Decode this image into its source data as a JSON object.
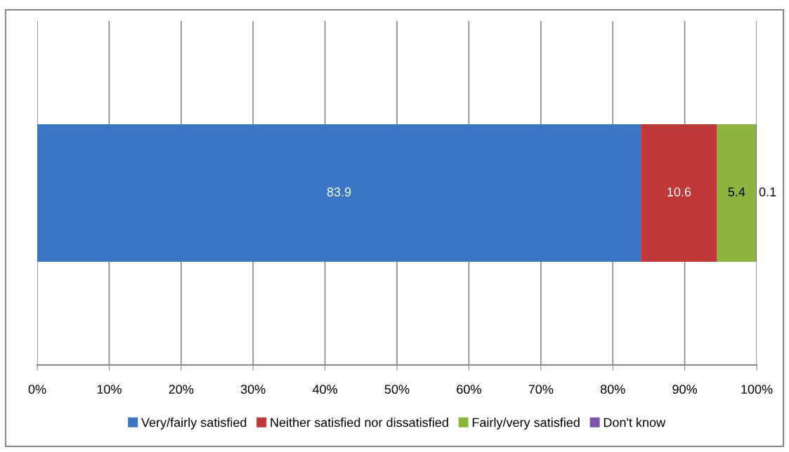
{
  "chart_data": {
    "type": "bar",
    "orientation": "horizontal",
    "stacked": true,
    "categories": [
      null
    ],
    "series": [
      {
        "name": "Very/fairly satisfied",
        "color": "#3a76c4",
        "values": [
          83.9
        ]
      },
      {
        "name": "Neither satisfied nor dissatisfied",
        "color": "#c0393a",
        "values": [
          10.6
        ]
      },
      {
        "name": "Fairly/very satisfied",
        "color": "#8db43e",
        "values": [
          5.4
        ]
      },
      {
        "name": "Don't know",
        "color": "#7b55a8",
        "values": [
          0.1
        ]
      }
    ],
    "data_labels": true,
    "xlim": [
      0,
      100
    ],
    "xticks": [
      {
        "value": 0,
        "label": "0%"
      },
      {
        "value": 10,
        "label": "10%"
      },
      {
        "value": 20,
        "label": "20%"
      },
      {
        "value": 30,
        "label": "30%"
      },
      {
        "value": 40,
        "label": "40%"
      },
      {
        "value": 50,
        "label": "50%"
      },
      {
        "value": 60,
        "label": "60%"
      },
      {
        "value": 70,
        "label": "70%"
      },
      {
        "value": 80,
        "label": "80%"
      },
      {
        "value": 90,
        "label": "90%"
      },
      {
        "value": 100,
        "label": "100%"
      }
    ],
    "grid": "x",
    "legend": "bottom"
  }
}
